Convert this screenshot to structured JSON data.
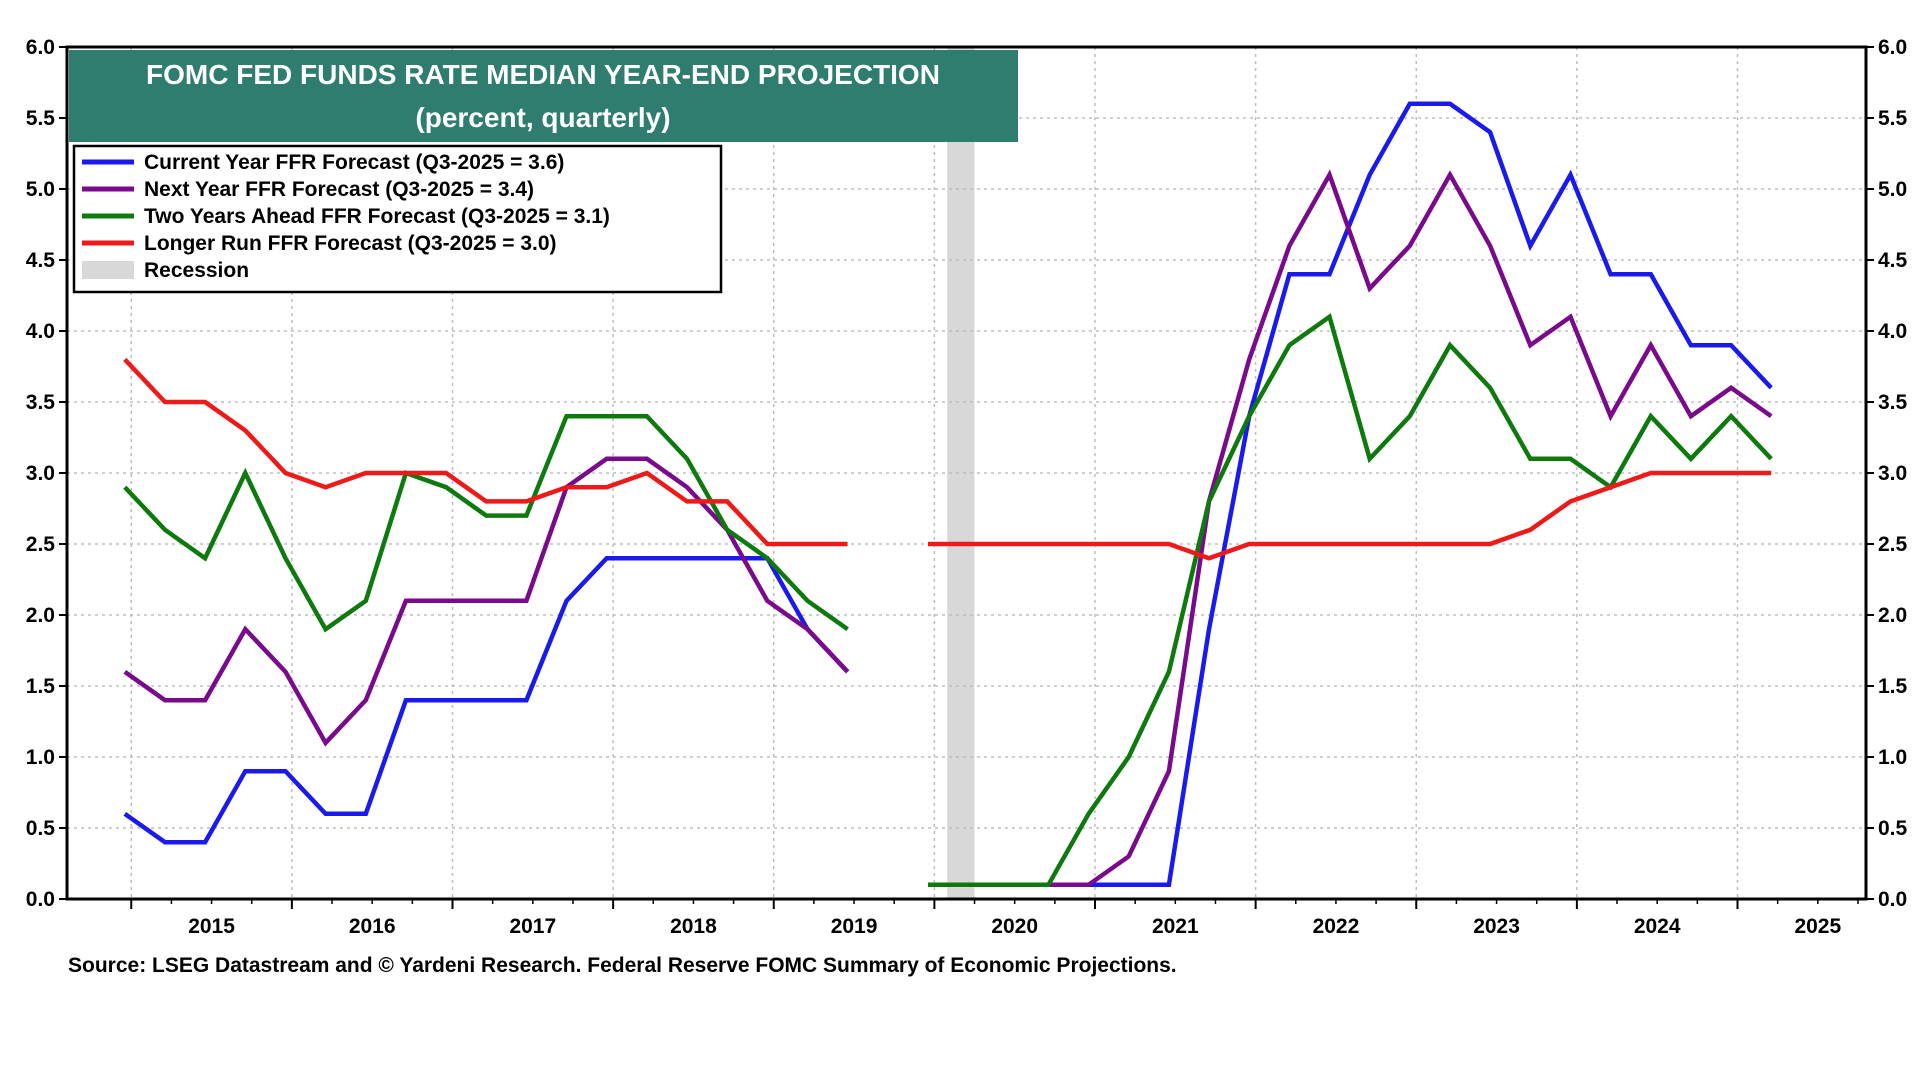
{
  "source_note": "Source: LSEG Datastream and © Yardeni Research. Federal Reserve FOMC Summary of Economic Projections.",
  "colors": {
    "current": "#1a1aee",
    "next": "#7a0a8c",
    "two_years": "#0e7a0e",
    "longer_run": "#ee1a1a",
    "recession": "#d8d8d8",
    "title_bg": "#2e7d6e",
    "title_text": "#ffffff"
  },
  "chart_data": {
    "type": "line",
    "title": "FOMC FED FUNDS RATE MEDIAN YEAR-END PROJECTION",
    "subtitle": "(percent, quarterly)",
    "xlabel": "",
    "ylabel": "",
    "xlim": [
      2014.6,
      2025.8
    ],
    "ylim": [
      0.0,
      6.0
    ],
    "grid": true,
    "legend_placement": "top-left",
    "x_ticks": [
      "2015",
      "2016",
      "2017",
      "2018",
      "2019",
      "2020",
      "2021",
      "2022",
      "2023",
      "2024",
      "2025"
    ],
    "y_ticks": [
      "0.0",
      "0.5",
      "1.0",
      "1.5",
      "2.0",
      "2.5",
      "3.0",
      "3.5",
      "4.0",
      "4.5",
      "5.0",
      "5.5",
      "6.0"
    ],
    "recessions": [
      {
        "label": "Recession",
        "start": 2020.08,
        "end": 2020.25
      }
    ],
    "series": [
      {
        "key": "current",
        "name": "Current Year FFR Forecast (Q3-2025 = 3.6)",
        "points": [
          [
            2014.96,
            0.6
          ],
          [
            2015.21,
            0.4
          ],
          [
            2015.46,
            0.4
          ],
          [
            2015.71,
            0.9
          ],
          [
            2015.96,
            0.9
          ],
          [
            2016.21,
            0.6
          ],
          [
            2016.46,
            0.6
          ],
          [
            2016.71,
            1.4
          ],
          [
            2016.96,
            1.4
          ],
          [
            2017.21,
            1.4
          ],
          [
            2017.46,
            1.4
          ],
          [
            2017.71,
            2.1
          ],
          [
            2017.96,
            2.4
          ],
          [
            2018.21,
            2.4
          ],
          [
            2018.46,
            2.4
          ],
          [
            2018.71,
            2.4
          ],
          [
            2018.96,
            2.4
          ],
          [
            2019.21,
            1.9
          ],
          [
            2019.46,
            1.6
          ],
          null,
          [
            2019.96,
            0.1
          ],
          [
            2020.21,
            0.1
          ],
          [
            2020.46,
            0.1
          ],
          [
            2020.71,
            0.1
          ],
          [
            2020.96,
            0.1
          ],
          [
            2021.21,
            0.1
          ],
          [
            2021.46,
            0.1
          ],
          [
            2021.71,
            1.9
          ],
          [
            2021.96,
            3.4
          ],
          [
            2022.21,
            4.4
          ],
          [
            2022.46,
            4.4
          ],
          [
            2022.71,
            5.1
          ],
          [
            2022.96,
            5.6
          ],
          [
            2023.21,
            5.6
          ],
          [
            2023.46,
            5.4
          ],
          [
            2023.71,
            4.6
          ],
          [
            2023.96,
            5.1
          ],
          [
            2024.21,
            4.4
          ],
          [
            2024.46,
            4.4
          ],
          [
            2024.71,
            3.9
          ],
          [
            2024.96,
            3.9
          ],
          [
            2025.21,
            3.6
          ]
        ]
      },
      {
        "key": "next",
        "name": "Next Year FFR Forecast (Q3-2025 = 3.4)",
        "points": [
          [
            2014.96,
            1.6
          ],
          [
            2015.21,
            1.4
          ],
          [
            2015.46,
            1.4
          ],
          [
            2015.71,
            1.9
          ],
          [
            2015.96,
            1.6
          ],
          [
            2016.21,
            1.1
          ],
          [
            2016.46,
            1.4
          ],
          [
            2016.71,
            2.1
          ],
          [
            2016.96,
            2.1
          ],
          [
            2017.21,
            2.1
          ],
          [
            2017.46,
            2.1
          ],
          [
            2017.71,
            2.9
          ],
          [
            2017.96,
            3.1
          ],
          [
            2018.21,
            3.1
          ],
          [
            2018.46,
            2.9
          ],
          [
            2018.71,
            2.6
          ],
          [
            2018.96,
            2.1
          ],
          [
            2019.21,
            1.9
          ],
          [
            2019.46,
            1.6
          ],
          null,
          [
            2019.96,
            0.1
          ],
          [
            2020.21,
            0.1
          ],
          [
            2020.46,
            0.1
          ],
          [
            2020.71,
            0.1
          ],
          [
            2020.96,
            0.1
          ],
          [
            2021.21,
            0.3
          ],
          [
            2021.46,
            0.9
          ],
          [
            2021.71,
            2.8
          ],
          [
            2021.96,
            3.8
          ],
          [
            2022.21,
            4.6
          ],
          [
            2022.46,
            5.1
          ],
          [
            2022.71,
            4.3
          ],
          [
            2022.96,
            4.6
          ],
          [
            2023.21,
            5.1
          ],
          [
            2023.46,
            4.6
          ],
          [
            2023.71,
            3.9
          ],
          [
            2023.96,
            4.1
          ],
          [
            2024.21,
            3.4
          ],
          [
            2024.46,
            3.9
          ],
          [
            2024.71,
            3.4
          ],
          [
            2024.96,
            3.6
          ],
          [
            2025.21,
            3.4
          ]
        ]
      },
      {
        "key": "two_years",
        "name": "Two Years Ahead FFR Forecast (Q3-2025 = 3.1)",
        "points": [
          [
            2014.96,
            2.9
          ],
          [
            2015.21,
            2.6
          ],
          [
            2015.46,
            2.4
          ],
          [
            2015.71,
            3.0
          ],
          [
            2015.96,
            2.4
          ],
          [
            2016.21,
            1.9
          ],
          [
            2016.46,
            2.1
          ],
          [
            2016.71,
            3.0
          ],
          [
            2016.96,
            2.9
          ],
          [
            2017.21,
            2.7
          ],
          [
            2017.46,
            2.7
          ],
          [
            2017.71,
            3.4
          ],
          [
            2017.96,
            3.4
          ],
          [
            2018.21,
            3.4
          ],
          [
            2018.46,
            3.1
          ],
          [
            2018.71,
            2.6
          ],
          [
            2018.96,
            2.4
          ],
          [
            2019.21,
            2.1
          ],
          [
            2019.46,
            1.9
          ],
          null,
          [
            2019.96,
            0.1
          ],
          [
            2020.21,
            0.1
          ],
          [
            2020.46,
            0.1
          ],
          [
            2020.71,
            0.1
          ],
          [
            2020.96,
            0.6
          ],
          [
            2021.21,
            1.0
          ],
          [
            2021.46,
            1.6
          ],
          [
            2021.71,
            2.8
          ],
          [
            2021.96,
            3.4
          ],
          [
            2022.21,
            3.9
          ],
          [
            2022.46,
            4.1
          ],
          [
            2022.71,
            3.1
          ],
          [
            2022.96,
            3.4
          ],
          [
            2023.21,
            3.9
          ],
          [
            2023.46,
            3.6
          ],
          [
            2023.71,
            3.1
          ],
          [
            2023.96,
            3.1
          ],
          [
            2024.21,
            2.9
          ],
          [
            2024.46,
            3.4
          ],
          [
            2024.71,
            3.1
          ],
          [
            2024.96,
            3.4
          ],
          [
            2025.21,
            3.1
          ]
        ]
      },
      {
        "key": "longer_run",
        "name": "Longer Run FFR Forecast (Q3-2025 = 3.0)",
        "points": [
          [
            2014.96,
            3.8
          ],
          [
            2015.21,
            3.5
          ],
          [
            2015.46,
            3.5
          ],
          [
            2015.71,
            3.3
          ],
          [
            2015.96,
            3.0
          ],
          [
            2016.21,
            2.9
          ],
          [
            2016.46,
            3.0
          ],
          [
            2016.71,
            3.0
          ],
          [
            2016.96,
            3.0
          ],
          [
            2017.21,
            2.8
          ],
          [
            2017.46,
            2.8
          ],
          [
            2017.71,
            2.9
          ],
          [
            2017.96,
            2.9
          ],
          [
            2018.21,
            3.0
          ],
          [
            2018.46,
            2.8
          ],
          [
            2018.71,
            2.8
          ],
          [
            2018.96,
            2.5
          ],
          [
            2019.21,
            2.5
          ],
          [
            2019.46,
            2.5
          ],
          null,
          [
            2019.96,
            2.5
          ],
          [
            2020.21,
            2.5
          ],
          [
            2020.46,
            2.5
          ],
          [
            2020.71,
            2.5
          ],
          [
            2020.96,
            2.5
          ],
          [
            2021.21,
            2.5
          ],
          [
            2021.46,
            2.5
          ],
          [
            2021.71,
            2.4
          ],
          [
            2021.96,
            2.5
          ],
          [
            2022.21,
            2.5
          ],
          [
            2022.46,
            2.5
          ],
          [
            2022.71,
            2.5
          ],
          [
            2022.96,
            2.5
          ],
          [
            2023.21,
            2.5
          ],
          [
            2023.46,
            2.5
          ],
          [
            2023.71,
            2.6
          ],
          [
            2023.96,
            2.8
          ],
          [
            2024.21,
            2.9
          ],
          [
            2024.46,
            3.0
          ],
          [
            2024.71,
            3.0
          ],
          [
            2024.96,
            3.0
          ],
          [
            2025.21,
            3.0
          ]
        ]
      }
    ]
  }
}
